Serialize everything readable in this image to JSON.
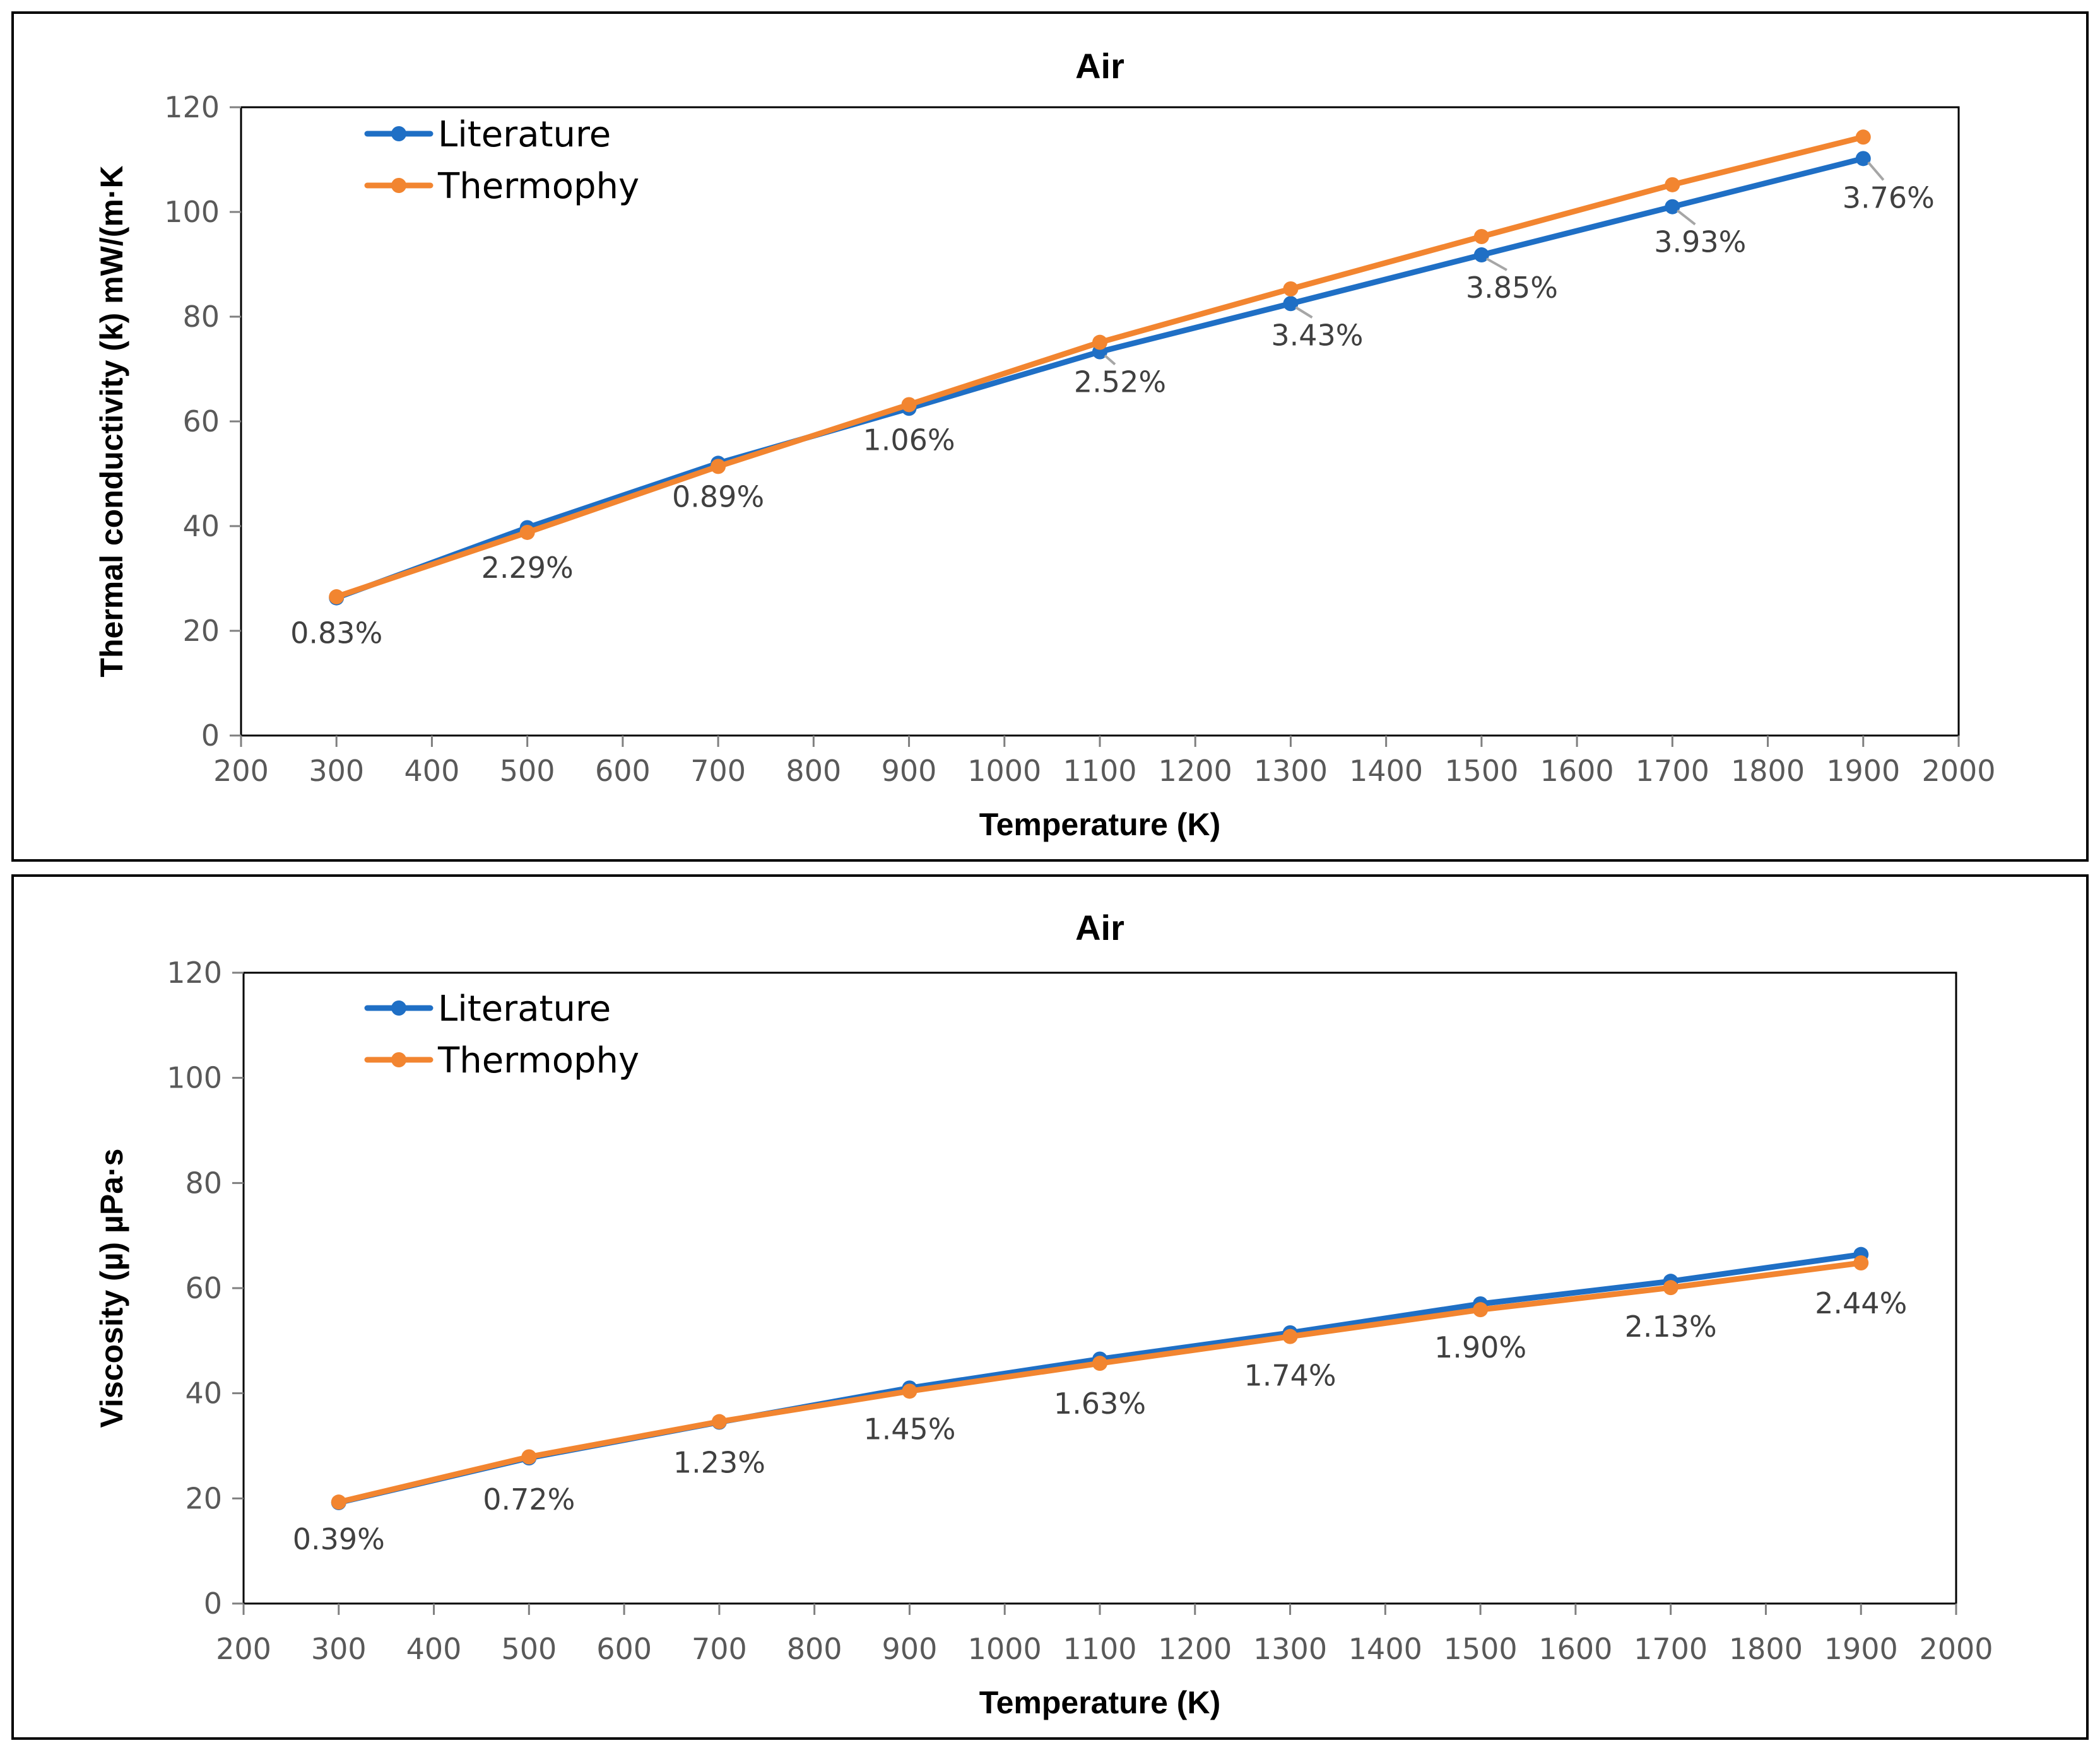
{
  "chart_data": [
    {
      "type": "line",
      "title": "Air",
      "xlabel": "Temperature (K)",
      "ylabel": "Thermal conductivity (k) mW/(m·K",
      "xlim": [
        200,
        2000
      ],
      "ylim": [
        0,
        120
      ],
      "xticks": [
        200,
        300,
        400,
        500,
        600,
        700,
        800,
        900,
        1000,
        1100,
        1200,
        1300,
        1400,
        1500,
        1600,
        1700,
        1800,
        1900,
        2000
      ],
      "yticks": [
        0,
        20,
        40,
        60,
        80,
        100,
        120
      ],
      "grid": false,
      "legend_position": "top-left",
      "x": [
        300,
        500,
        700,
        900,
        1100,
        1300,
        1500,
        1700,
        1900
      ],
      "series": [
        {
          "name": "Literature",
          "color": "#1F6FC5",
          "values": [
            26.3,
            39.7,
            52.0,
            62.5,
            73.3,
            82.5,
            91.8,
            101.0,
            110.2
          ]
        },
        {
          "name": "Thermophy",
          "color": "#F28530",
          "values": [
            26.5,
            38.8,
            51.4,
            63.2,
            75.1,
            85.3,
            95.3,
            105.2,
            114.3
          ]
        }
      ],
      "data_labels": [
        "0.83%",
        "2.29%",
        "0.89%",
        "1.06%",
        "2.52%",
        "3.43%",
        "3.85%",
        "3.93%",
        "3.76%"
      ]
    },
    {
      "type": "line",
      "title": "Air",
      "xlabel": "Temperature (K)",
      "ylabel": "Viscosity (µ) µPa·s",
      "xlim": [
        200,
        2000
      ],
      "ylim": [
        0,
        120
      ],
      "xticks": [
        200,
        300,
        400,
        500,
        600,
        700,
        800,
        900,
        1000,
        1100,
        1200,
        1300,
        1400,
        1500,
        1600,
        1700,
        1800,
        1900,
        2000
      ],
      "yticks": [
        0,
        20,
        40,
        60,
        80,
        100,
        120
      ],
      "grid": false,
      "legend_position": "top-left",
      "x": [
        300,
        500,
        700,
        900,
        1100,
        1300,
        1500,
        1700,
        1900
      ],
      "series": [
        {
          "name": "Literature",
          "color": "#1F6FC5",
          "values": [
            19.2,
            27.7,
            34.5,
            41.0,
            46.5,
            51.5,
            57.0,
            61.3,
            66.4
          ]
        },
        {
          "name": "Thermophy",
          "color": "#F28530",
          "values": [
            19.3,
            27.9,
            34.6,
            40.4,
            45.7,
            50.8,
            55.9,
            60.1,
            64.8
          ]
        }
      ],
      "data_labels": [
        "0.39%",
        "0.72%",
        "1.23%",
        "1.45%",
        "1.63%",
        "1.74%",
        "1.90%",
        "2.13%",
        "2.44%"
      ]
    }
  ]
}
